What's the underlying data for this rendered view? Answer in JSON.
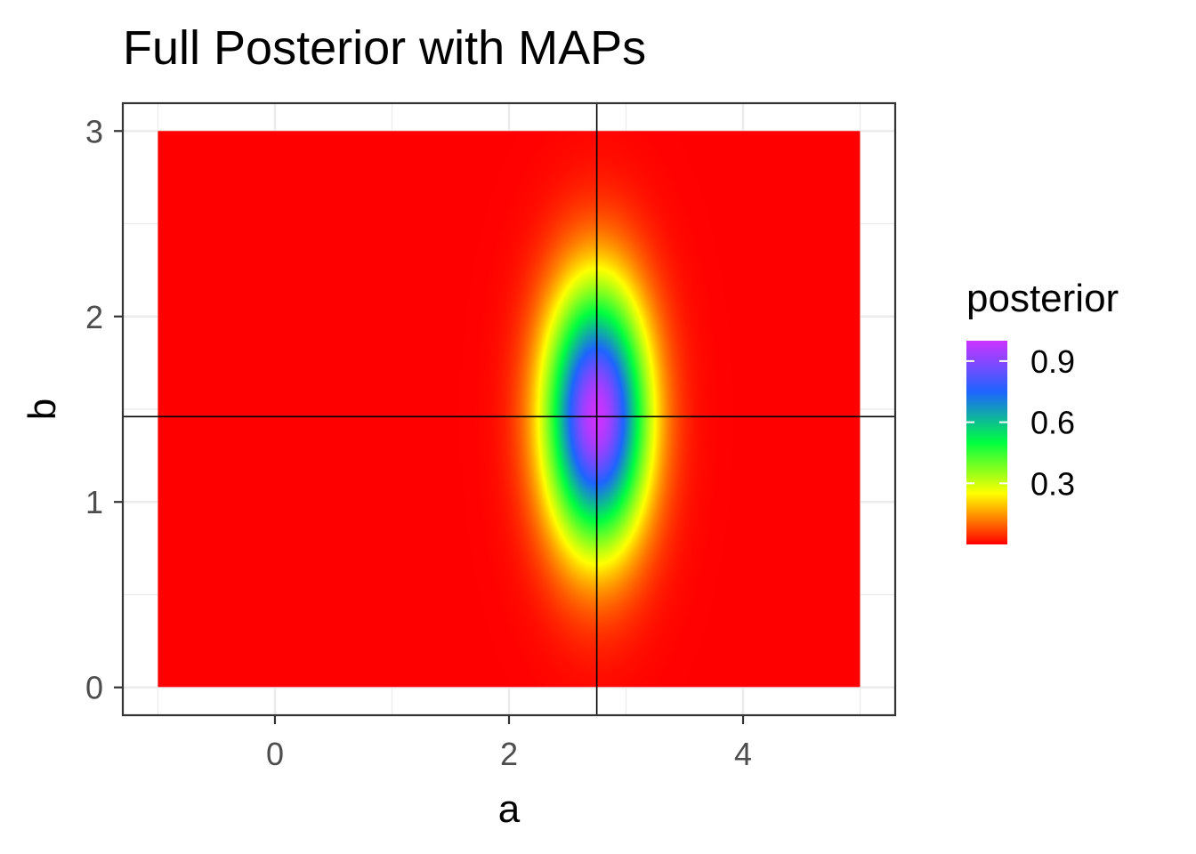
{
  "chart_data": {
    "type": "heatmap",
    "title": "Full Posterior with MAPs",
    "xlabel": "a",
    "ylabel": "b",
    "xlim": [
      -1.3,
      5.3
    ],
    "ylim": [
      -0.15,
      3.15
    ],
    "data_extent": {
      "x": [
        -1,
        5
      ],
      "y": [
        0,
        3
      ]
    },
    "x_ticks": [
      0,
      2,
      4
    ],
    "x_tick_labels": [
      "0",
      "2",
      "4"
    ],
    "y_ticks": [
      0,
      1,
      2,
      3
    ],
    "y_tick_labels": [
      "0",
      "1",
      "2",
      "3"
    ],
    "map_estimate": {
      "a": 2.75,
      "b": 1.46
    },
    "posterior_peak": {
      "a": 2.75,
      "b": 1.46,
      "sd_a": 0.3,
      "sd_b": 0.48,
      "max": 1.0
    },
    "grid": true,
    "legend": {
      "title": "posterior",
      "placement": "right",
      "range": [
        0,
        1.0
      ],
      "breaks": [
        0.3,
        0.6,
        0.9
      ],
      "break_labels": [
        "0.3",
        "0.6",
        "0.9"
      ],
      "colors": [
        "#ff0000",
        "#ffff00",
        "#00ff40",
        "#1e64ff",
        "#cc33ff"
      ]
    }
  }
}
